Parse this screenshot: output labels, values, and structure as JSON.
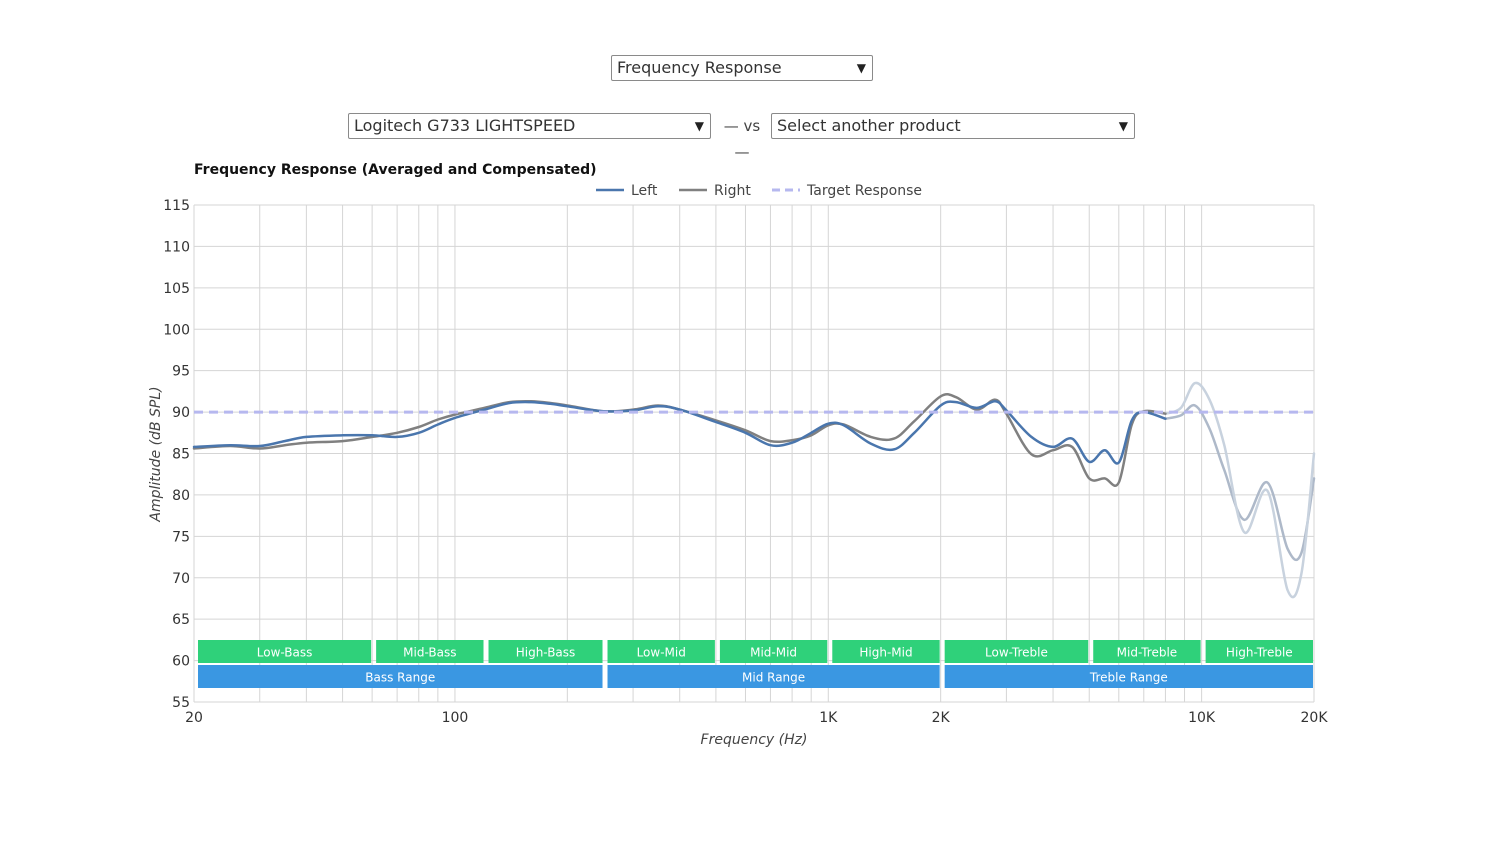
{
  "controls": {
    "metric_select": "Frequency Response",
    "product_select": "Logitech G733 LIGHTSPEED",
    "vs_text": "— vs —",
    "compare_select": "Select another product"
  },
  "chart_data": {
    "type": "line",
    "title": "Frequency Response (Averaged and Compensated)",
    "xlabel": "Frequency (Hz)",
    "ylabel": "Amplitude (dB SPL)",
    "xscale": "log",
    "xlim": [
      20,
      20000
    ],
    "ylim": [
      55,
      115
    ],
    "grid": true,
    "legend_position": "top-center",
    "xticks": [
      {
        "value": 20,
        "label": "20"
      },
      {
        "value": 100,
        "label": "100"
      },
      {
        "value": 1000,
        "label": "1K"
      },
      {
        "value": 2000,
        "label": "2K"
      },
      {
        "value": 10000,
        "label": "10K"
      },
      {
        "value": 20000,
        "label": "20K"
      }
    ],
    "yticks": [
      55,
      60,
      65,
      70,
      75,
      80,
      85,
      90,
      95,
      100,
      105,
      110,
      115
    ],
    "series": [
      {
        "name": "Left",
        "color": "#4a76ad",
        "points": [
          [
            20,
            85.8
          ],
          [
            25,
            86.0
          ],
          [
            30,
            85.9
          ],
          [
            35,
            86.5
          ],
          [
            40,
            87.0
          ],
          [
            50,
            87.2
          ],
          [
            60,
            87.2
          ],
          [
            70,
            87.0
          ],
          [
            80,
            87.5
          ],
          [
            90,
            88.5
          ],
          [
            100,
            89.3
          ],
          [
            120,
            90.3
          ],
          [
            140,
            91.1
          ],
          [
            160,
            91.2
          ],
          [
            180,
            91.0
          ],
          [
            200,
            90.7
          ],
          [
            250,
            90.1
          ],
          [
            300,
            90.2
          ],
          [
            350,
            90.7
          ],
          [
            400,
            90.3
          ],
          [
            500,
            88.8
          ],
          [
            600,
            87.5
          ],
          [
            700,
            86.0
          ],
          [
            800,
            86.3
          ],
          [
            900,
            87.5
          ],
          [
            1000,
            88.6
          ],
          [
            1100,
            88.4
          ],
          [
            1300,
            86.2
          ],
          [
            1500,
            85.5
          ],
          [
            1700,
            87.5
          ],
          [
            2000,
            90.8
          ],
          [
            2200,
            91.2
          ],
          [
            2500,
            90.5
          ],
          [
            2800,
            91.3
          ],
          [
            3000,
            90.2
          ],
          [
            3500,
            87.0
          ],
          [
            4000,
            85.8
          ],
          [
            4500,
            86.8
          ],
          [
            5000,
            84.0
          ],
          [
            5500,
            85.4
          ],
          [
            6000,
            83.9
          ],
          [
            6500,
            89.0
          ],
          [
            7000,
            90.0
          ],
          [
            8000,
            89.2
          ]
        ]
      },
      {
        "name": "Right",
        "color": "#808080",
        "points": [
          [
            20,
            85.6
          ],
          [
            25,
            85.9
          ],
          [
            30,
            85.6
          ],
          [
            35,
            86.0
          ],
          [
            40,
            86.3
          ],
          [
            50,
            86.5
          ],
          [
            60,
            87.0
          ],
          [
            70,
            87.5
          ],
          [
            80,
            88.2
          ],
          [
            90,
            89.1
          ],
          [
            100,
            89.7
          ],
          [
            120,
            90.5
          ],
          [
            140,
            91.2
          ],
          [
            160,
            91.3
          ],
          [
            180,
            91.1
          ],
          [
            200,
            90.8
          ],
          [
            250,
            90.1
          ],
          [
            300,
            90.3
          ],
          [
            350,
            90.8
          ],
          [
            400,
            90.3
          ],
          [
            500,
            89.0
          ],
          [
            600,
            87.8
          ],
          [
            700,
            86.5
          ],
          [
            800,
            86.6
          ],
          [
            900,
            87.2
          ],
          [
            1000,
            88.4
          ],
          [
            1100,
            88.5
          ],
          [
            1300,
            87.0
          ],
          [
            1500,
            86.8
          ],
          [
            1700,
            88.9
          ],
          [
            2000,
            91.9
          ],
          [
            2200,
            91.8
          ],
          [
            2500,
            90.3
          ],
          [
            2800,
            91.5
          ],
          [
            3000,
            89.8
          ],
          [
            3500,
            84.9
          ],
          [
            4000,
            85.4
          ],
          [
            4500,
            85.8
          ],
          [
            5000,
            82.0
          ],
          [
            5500,
            82.0
          ],
          [
            6000,
            81.5
          ],
          [
            6500,
            88.5
          ],
          [
            7000,
            90.1
          ],
          [
            8000,
            89.8
          ]
        ]
      },
      {
        "name": "Left (treble)",
        "color": "#aeb9c9",
        "points": [
          [
            8000,
            89.2
          ],
          [
            8800,
            89.6
          ],
          [
            9600,
            90.8
          ],
          [
            10500,
            88.0
          ],
          [
            11500,
            83.0
          ],
          [
            13000,
            77.0
          ],
          [
            15000,
            81.5
          ],
          [
            17000,
            73.5
          ],
          [
            18500,
            73.0
          ],
          [
            20000,
            82.0
          ]
        ]
      },
      {
        "name": "Right (treble)",
        "color": "#c8d2de",
        "points": [
          [
            8000,
            89.8
          ],
          [
            8800,
            90.5
          ],
          [
            9600,
            93.5
          ],
          [
            10500,
            91.5
          ],
          [
            11500,
            86.0
          ],
          [
            13000,
            75.5
          ],
          [
            15000,
            80.5
          ],
          [
            17000,
            68.5
          ],
          [
            18500,
            70.5
          ],
          [
            20000,
            85.0
          ]
        ]
      },
      {
        "name": "Target Response",
        "color": "#b6b8ef",
        "dashed": true,
        "points": [
          [
            20,
            90
          ],
          [
            20000,
            90
          ]
        ]
      }
    ],
    "legend": [
      "Left",
      "Right",
      "Target Response"
    ],
    "bands_top": [
      {
        "label": "Low-Bass",
        "from": 20,
        "to": 60
      },
      {
        "label": "Mid-Bass",
        "from": 60,
        "to": 120
      },
      {
        "label": "High-Bass",
        "from": 120,
        "to": 250
      },
      {
        "label": "Low-Mid",
        "from": 250,
        "to": 500
      },
      {
        "label": "Mid-Mid",
        "from": 500,
        "to": 1000
      },
      {
        "label": "High-Mid",
        "from": 1000,
        "to": 2000
      },
      {
        "label": "Low-Treble",
        "from": 2000,
        "to": 5000
      },
      {
        "label": "Mid-Treble",
        "from": 5000,
        "to": 10000
      },
      {
        "label": "High-Treble",
        "from": 10000,
        "to": 20000
      }
    ],
    "bands_bottom": [
      {
        "label": "Bass Range",
        "from": 20,
        "to": 250
      },
      {
        "label": "Mid Range",
        "from": 250,
        "to": 2000
      },
      {
        "label": "Treble Range",
        "from": 2000,
        "to": 20000
      }
    ],
    "colors": {
      "band_top": "#2fd17a",
      "band_bottom": "#3a97e2",
      "grid": "#d5d5d5"
    }
  }
}
